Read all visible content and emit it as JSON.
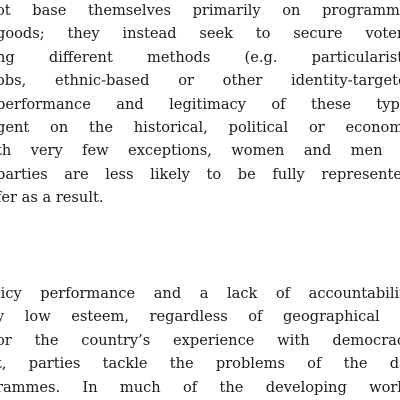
{
  "document": {
    "paragraphs": [
      {
        "lines": [
          "ot base themselves primarily on programmes",
          "goods; they instead seek to secure voters’",
          "ng different methods (e.g. particularistic",
          "obs, ethnic-based or other identity-targeted",
          "performance and legitimacy of these types",
          "gent on the historical, political or economic",
          "th very few exceptions, women and men in",
          "parties are less likely to be fully represented,",
          "fer as a result."
        ]
      },
      {
        "lines": [
          "licy performance and a lack of accountability,",
          "y low esteem, regardless of geographical or",
          "or the country’s experience with democracy.",
          "t, parties tackle the problems of the day",
          "rammes. In much of the developing world,"
        ]
      }
    ]
  }
}
